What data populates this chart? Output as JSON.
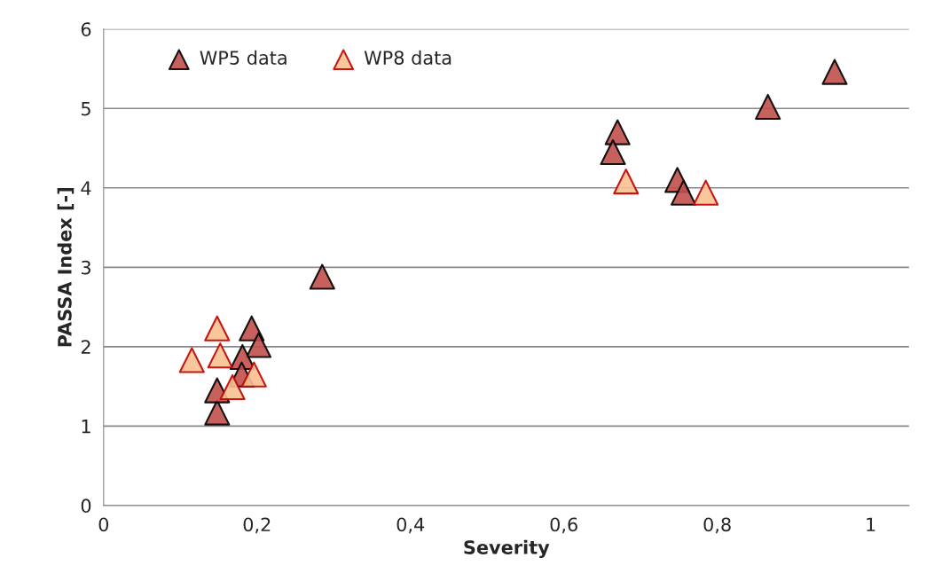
{
  "chart_data": {
    "type": "scatter",
    "xlabel": "Severity",
    "ylabel": "PASSA Index [-]",
    "xlim": [
      0,
      1.05
    ],
    "ylim": [
      0,
      6
    ],
    "xticks": [
      0,
      {
        "value": 0.2,
        "label": "0,2"
      },
      {
        "value": 0.4,
        "label": "0,4"
      },
      {
        "value": 0.6,
        "label": "0,6"
      },
      {
        "value": 0.8,
        "label": "0,8"
      },
      1
    ],
    "yticks": [
      0,
      1,
      2,
      3,
      4,
      5,
      6
    ],
    "grid": "y",
    "legend": "top left",
    "marker": "triangle",
    "series": [
      {
        "name": "WP5 data",
        "color": "#c0504d",
        "x": [
          0.148,
          0.148,
          0.193,
          0.202,
          0.181,
          0.18,
          0.285,
          0.67,
          0.664,
          0.748,
          0.756,
          0.866,
          0.953
        ],
        "values": [
          1.17,
          1.45,
          2.23,
          2.02,
          1.87,
          1.65,
          2.88,
          4.7,
          4.45,
          4.1,
          3.94,
          5.02,
          5.46
        ]
      },
      {
        "name": "WP8 data",
        "color": "#fac090",
        "x": [
          0.148,
          0.115,
          0.152,
          0.168,
          0.196,
          0.681,
          0.785
        ],
        "values": [
          2.23,
          1.83,
          1.89,
          1.49,
          1.65,
          4.08,
          3.94
        ]
      }
    ]
  }
}
